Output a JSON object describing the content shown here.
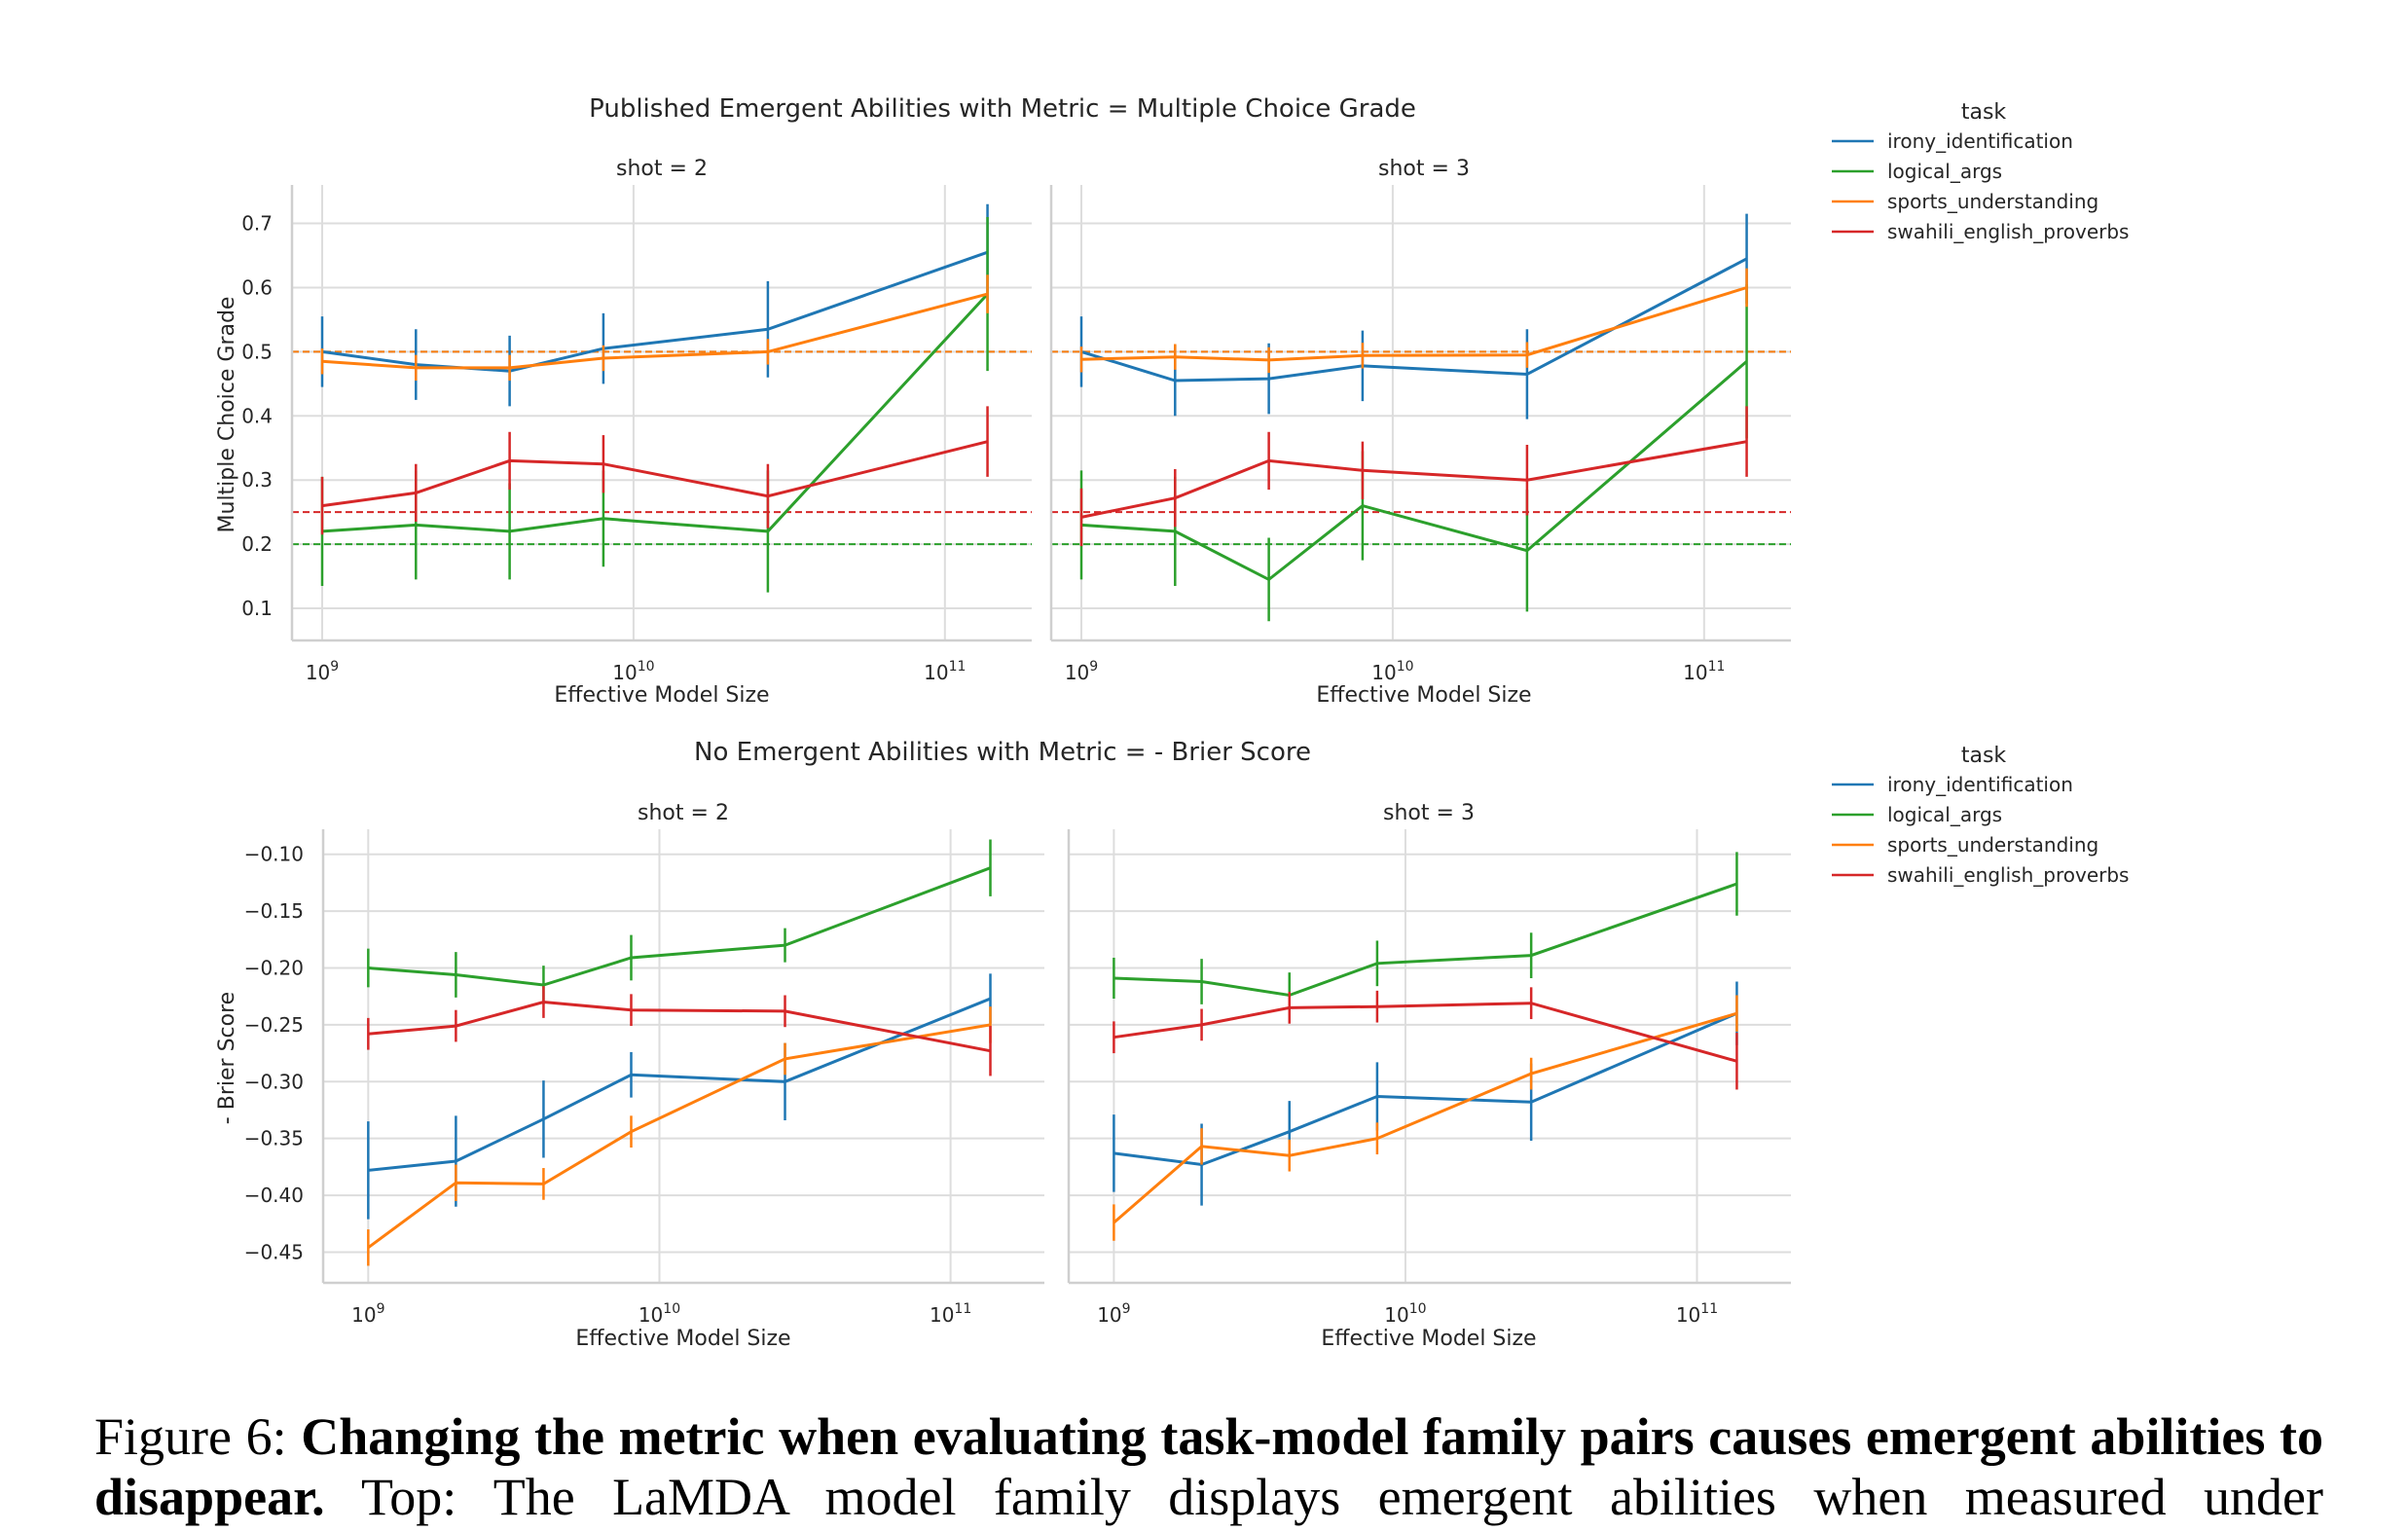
{
  "chart_data": [
    {
      "type": "line",
      "title": "Published Emergent Abilities with Metric = Multiple Choice Grade",
      "ylabel": "Multiple Choice Grade",
      "ylim": [
        0.05,
        0.76
      ],
      "yticks": [
        0.1,
        0.2,
        0.3,
        0.4,
        0.5,
        0.6,
        0.7
      ],
      "ytick_labels": [
        "0.1",
        "0.2",
        "0.3",
        "0.4",
        "0.5",
        "0.6",
        "0.7"
      ],
      "x_scale": "log",
      "xlim": [
        800000000.0,
        190000000000.0
      ],
      "xticks": [
        1000000000.0,
        10000000000.0,
        100000000000.0
      ],
      "xtick_base": "10",
      "xtick_exponents": [
        "9",
        "10",
        "11"
      ],
      "grid": true,
      "legend": {
        "title": "task",
        "placement": "outside right",
        "entries": [
          "irony_identification",
          "logical_args",
          "sports_understanding",
          "swahili_english_proverbs"
        ]
      },
      "reference_lines": [
        {
          "y": 0.5,
          "color": "#1f77b4",
          "style": "dashed"
        },
        {
          "y": 0.5,
          "color": "#ff7f0e",
          "style": "dashed"
        },
        {
          "y": 0.25,
          "color": "#d62728",
          "style": "dashed"
        },
        {
          "y": 0.2,
          "color": "#2ca02c",
          "style": "dashed"
        }
      ],
      "panels": [
        {
          "title": "shot = 2",
          "xlabel": "Effective Model Size",
          "x": [
            1000000000.0,
            2000000000.0,
            4000000000.0,
            8000000000.0,
            27000000000.0,
            137000000000.0
          ],
          "series": [
            {
              "name": "irony_identification",
              "color": "#1f77b4",
              "values": [
                0.5,
                0.48,
                0.47,
                0.505,
                0.535,
                0.655
              ],
              "err": [
                0.055,
                0.055,
                0.055,
                0.055,
                0.075,
                0.075
              ]
            },
            {
              "name": "logical_args",
              "color": "#2ca02c",
              "values": [
                0.22,
                0.23,
                0.22,
                0.24,
                0.22,
                0.59
              ],
              "err": [
                0.085,
                0.085,
                0.075,
                0.075,
                0.095,
                0.12
              ]
            },
            {
              "name": "sports_understanding",
              "color": "#ff7f0e",
              "values": [
                0.485,
                0.475,
                0.475,
                0.49,
                0.5,
                0.59
              ],
              "err": [
                0.02,
                0.02,
                0.02,
                0.02,
                0.02,
                0.03
              ]
            },
            {
              "name": "swahili_english_proverbs",
              "color": "#d62728",
              "values": [
                0.26,
                0.28,
                0.33,
                0.325,
                0.275,
                0.36
              ],
              "err": [
                0.045,
                0.045,
                0.045,
                0.045,
                0.05,
                0.055
              ]
            }
          ]
        },
        {
          "title": "shot = 3",
          "xlabel": "Effective Model Size",
          "x": [
            1000000000.0,
            2000000000.0,
            4000000000.0,
            8000000000.0,
            27000000000.0,
            137000000000.0
          ],
          "series": [
            {
              "name": "irony_identification",
              "color": "#1f77b4",
              "values": [
                0.5,
                0.455,
                0.458,
                0.478,
                0.465,
                0.645
              ],
              "err": [
                0.055,
                0.055,
                0.055,
                0.055,
                0.07,
                0.07
              ]
            },
            {
              "name": "logical_args",
              "color": "#2ca02c",
              "values": [
                0.23,
                0.22,
                0.145,
                0.26,
                0.19,
                0.485
              ],
              "err": [
                0.085,
                0.085,
                0.065,
                0.085,
                0.095,
                0.12
              ]
            },
            {
              "name": "sports_understanding",
              "color": "#ff7f0e",
              "values": [
                0.488,
                0.492,
                0.487,
                0.494,
                0.495,
                0.6
              ],
              "err": [
                0.02,
                0.02,
                0.02,
                0.02,
                0.02,
                0.03
              ]
            },
            {
              "name": "swahili_english_proverbs",
              "color": "#d62728",
              "values": [
                0.242,
                0.272,
                0.33,
                0.315,
                0.3,
                0.36
              ],
              "err": [
                0.045,
                0.045,
                0.045,
                0.045,
                0.055,
                0.055
              ]
            }
          ]
        }
      ]
    },
    {
      "type": "line",
      "title": "No Emergent Abilities with Metric = - Brier Score",
      "ylabel": "- Brier Score",
      "ylim": [
        -0.477,
        -0.078
      ],
      "yticks": [
        -0.45,
        -0.4,
        -0.35,
        -0.3,
        -0.25,
        -0.2,
        -0.15,
        -0.1
      ],
      "ytick_labels": [
        "−0.45",
        "−0.40",
        "−0.35",
        "−0.30",
        "−0.25",
        "−0.20",
        "−0.15",
        "−0.10"
      ],
      "x_scale": "log",
      "xlim": [
        700000000.0,
        210000000000.0
      ],
      "xticks": [
        1000000000.0,
        10000000000.0,
        100000000000.0
      ],
      "xtick_base": "10",
      "xtick_exponents": [
        "9",
        "10",
        "11"
      ],
      "grid": true,
      "legend": {
        "title": "task",
        "placement": "outside right",
        "entries": [
          "irony_identification",
          "logical_args",
          "sports_understanding",
          "swahili_english_proverbs"
        ]
      },
      "reference_lines": [],
      "panels": [
        {
          "title": "shot = 2",
          "xlabel": "Effective Model Size",
          "x": [
            1000000000.0,
            2000000000.0,
            4000000000.0,
            8000000000.0,
            27000000000.0,
            137000000000.0
          ],
          "series": [
            {
              "name": "irony_identification",
              "color": "#1f77b4",
              "values": [
                -0.378,
                -0.37,
                -0.333,
                -0.294,
                -0.3,
                -0.227
              ],
              "err": [
                0.043,
                0.04,
                0.034,
                0.02,
                0.034,
                0.022
              ]
            },
            {
              "name": "logical_args",
              "color": "#2ca02c",
              "values": [
                -0.2,
                -0.206,
                -0.215,
                -0.191,
                -0.18,
                -0.112
              ],
              "err": [
                0.017,
                0.02,
                0.017,
                0.02,
                0.015,
                0.025
              ]
            },
            {
              "name": "sports_understanding",
              "color": "#ff7f0e",
              "values": [
                -0.446,
                -0.389,
                -0.39,
                -0.344,
                -0.28,
                -0.25
              ],
              "err": [
                0.016,
                0.016,
                0.014,
                0.014,
                0.014,
                0.016
              ]
            },
            {
              "name": "swahili_english_proverbs",
              "color": "#d62728",
              "values": [
                -0.258,
                -0.251,
                -0.23,
                -0.237,
                -0.238,
                -0.273
              ],
              "err": [
                0.014,
                0.014,
                0.014,
                0.014,
                0.014,
                0.022
              ]
            }
          ]
        },
        {
          "title": "shot = 3",
          "xlabel": "Effective Model Size",
          "x": [
            1000000000.0,
            2000000000.0,
            4000000000.0,
            8000000000.0,
            27000000000.0,
            137000000000.0
          ],
          "series": [
            {
              "name": "irony_identification",
              "color": "#1f77b4",
              "values": [
                -0.363,
                -0.373,
                -0.344,
                -0.313,
                -0.318,
                -0.24
              ],
              "err": [
                0.034,
                0.036,
                0.027,
                0.03,
                0.034,
                0.028
              ]
            },
            {
              "name": "logical_args",
              "color": "#2ca02c",
              "values": [
                -0.209,
                -0.212,
                -0.224,
                -0.196,
                -0.189,
                -0.126
              ],
              "err": [
                0.018,
                0.02,
                0.02,
                0.02,
                0.02,
                0.028
              ]
            },
            {
              "name": "sports_understanding",
              "color": "#ff7f0e",
              "values": [
                -0.424,
                -0.357,
                -0.365,
                -0.35,
                -0.293,
                -0.24
              ],
              "err": [
                0.016,
                0.016,
                0.014,
                0.014,
                0.014,
                0.016
              ]
            },
            {
              "name": "swahili_english_proverbs",
              "color": "#d62728",
              "values": [
                -0.261,
                -0.25,
                -0.235,
                -0.234,
                -0.231,
                -0.282
              ],
              "err": [
                0.014,
                0.014,
                0.014,
                0.014,
                0.014,
                0.025
              ]
            }
          ]
        }
      ]
    }
  ],
  "caption": {
    "label": "Figure 6:",
    "bold": "Changing the metric when evaluating task-model family pairs causes emergent abilities to disappear.",
    "text": "Top: The LaMDA model family displays emergent abilities when measured under"
  }
}
